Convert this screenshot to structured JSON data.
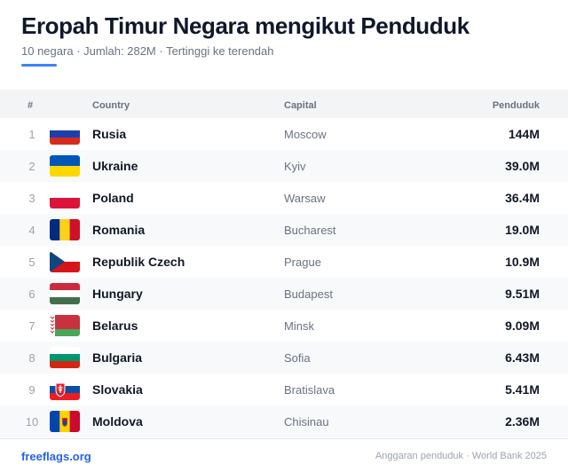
{
  "header": {
    "title": "Eropah Timur Negara mengikut Penduduk",
    "subtitle": "10 negara · Jumlah: 282M · Tertinggi ke terendah"
  },
  "table": {
    "columns": {
      "num": "#",
      "country": "Country",
      "capital": "Capital",
      "population": "Penduduk"
    },
    "rows": [
      {
        "rank": "1",
        "flag": "russia-flag-icon",
        "country": "Rusia",
        "capital": "Moscow",
        "population": "144M"
      },
      {
        "rank": "2",
        "flag": "ukraine-flag-icon",
        "country": "Ukraine",
        "capital": "Kyiv",
        "population": "39.0M"
      },
      {
        "rank": "3",
        "flag": "poland-flag-icon",
        "country": "Poland",
        "capital": "Warsaw",
        "population": "36.4M"
      },
      {
        "rank": "4",
        "flag": "romania-flag-icon",
        "country": "Romania",
        "capital": "Bucharest",
        "population": "19.0M"
      },
      {
        "rank": "5",
        "flag": "czech-flag-icon",
        "country": "Republik Czech",
        "capital": "Prague",
        "population": "10.9M"
      },
      {
        "rank": "6",
        "flag": "hungary-flag-icon",
        "country": "Hungary",
        "capital": "Budapest",
        "population": "9.51M"
      },
      {
        "rank": "7",
        "flag": "belarus-flag-icon",
        "country": "Belarus",
        "capital": "Minsk",
        "population": "9.09M"
      },
      {
        "rank": "8",
        "flag": "bulgaria-flag-icon",
        "country": "Bulgaria",
        "capital": "Sofia",
        "population": "6.43M"
      },
      {
        "rank": "9",
        "flag": "slovakia-flag-icon",
        "country": "Slovakia",
        "capital": "Bratislava",
        "population": "5.41M"
      },
      {
        "rank": "10",
        "flag": "moldova-flag-icon",
        "country": "Moldova",
        "capital": "Chisinau",
        "population": "2.36M"
      }
    ]
  },
  "footer": {
    "site": "freeflags.org",
    "source": "Anggaran penduduk · World Bank 2025"
  },
  "colors": {
    "accent": "#3b82f6",
    "link": "#2563eb",
    "header_bg": "#f3f4f6",
    "stripe_bg": "#f8f9fb"
  }
}
